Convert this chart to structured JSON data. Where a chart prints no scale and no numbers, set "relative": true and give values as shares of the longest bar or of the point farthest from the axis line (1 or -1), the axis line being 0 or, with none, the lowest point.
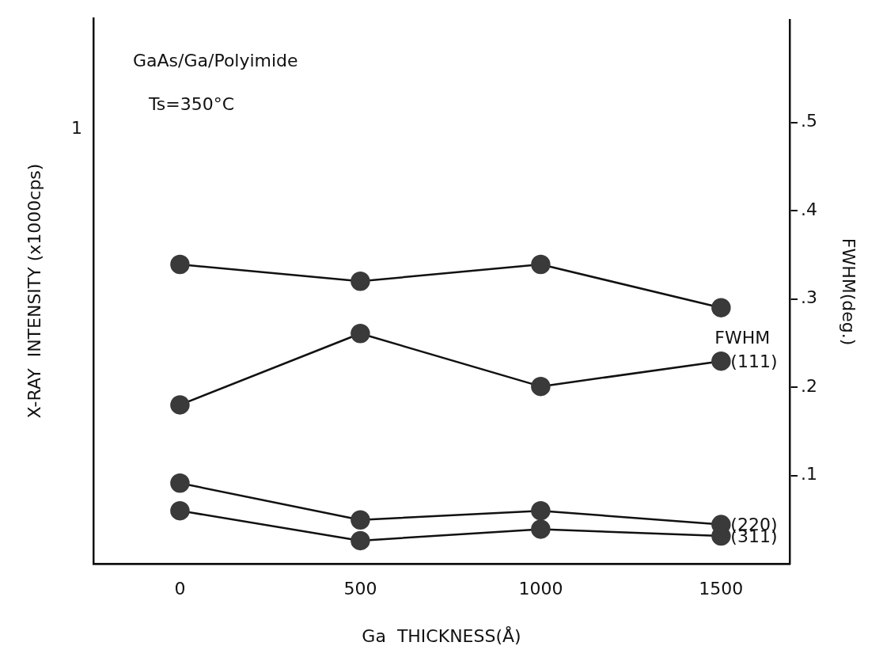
{
  "chart_data": [
    {
      "type": "line",
      "relative": true,
      "xlabel": "Ga  THICKNESS(Å)",
      "ylabel": "X-RAY  INTENSITY (x1000cps)",
      "annotations": [
        "GaAs/Ga/Polyimide",
        "Ts=350°C",
        "1"
      ],
      "x": [
        0,
        500,
        1000,
        1500
      ],
      "xlim": [
        -240,
        1690
      ],
      "xticks": [
        0,
        500,
        1000,
        1500
      ],
      "series": [
        {
          "name": "(111)",
          "color": "#3a3a3a",
          "values": [
            0.69,
            1,
            0.77,
            0.88
          ]
        },
        {
          "name": "(220)",
          "color": "#3a3a3a",
          "values": [
            0.35,
            0.19,
            0.23,
            0.17
          ]
        },
        {
          "name": "(311)",
          "color": "#3a3a3a",
          "values": [
            0.23,
            0.1,
            0.15,
            0.12
          ]
        }
      ],
      "grid": false,
      "legend": false,
      "marker": "circle",
      "line_style": "solid"
    },
    {
      "type": "line",
      "ylabel": "FWHM(deg.)",
      "tick_labels": "y",
      "x": [
        0,
        500,
        1000,
        1500
      ],
      "xlim": [
        -240,
        1690
      ],
      "xticks": [
        0,
        500,
        1000,
        1500
      ],
      "ylim": [
        0,
        0.616
      ],
      "yticks": [
        {
          "value": 0.1,
          "label": ".1"
        },
        {
          "value": 0.2,
          "label": ".2"
        },
        {
          "value": 0.3,
          "label": ".3"
        },
        {
          "value": 0.4,
          "label": ".4"
        },
        {
          "value": 0.5,
          "label": ".5"
        }
      ],
      "series": [
        {
          "name": "FWHM",
          "color": "#3a3a3a",
          "values": [
            0.339,
            0.32,
            0.339,
            0.29
          ]
        }
      ],
      "grid": false,
      "legend": false,
      "marker": "circle",
      "line_style": "solid"
    }
  ]
}
